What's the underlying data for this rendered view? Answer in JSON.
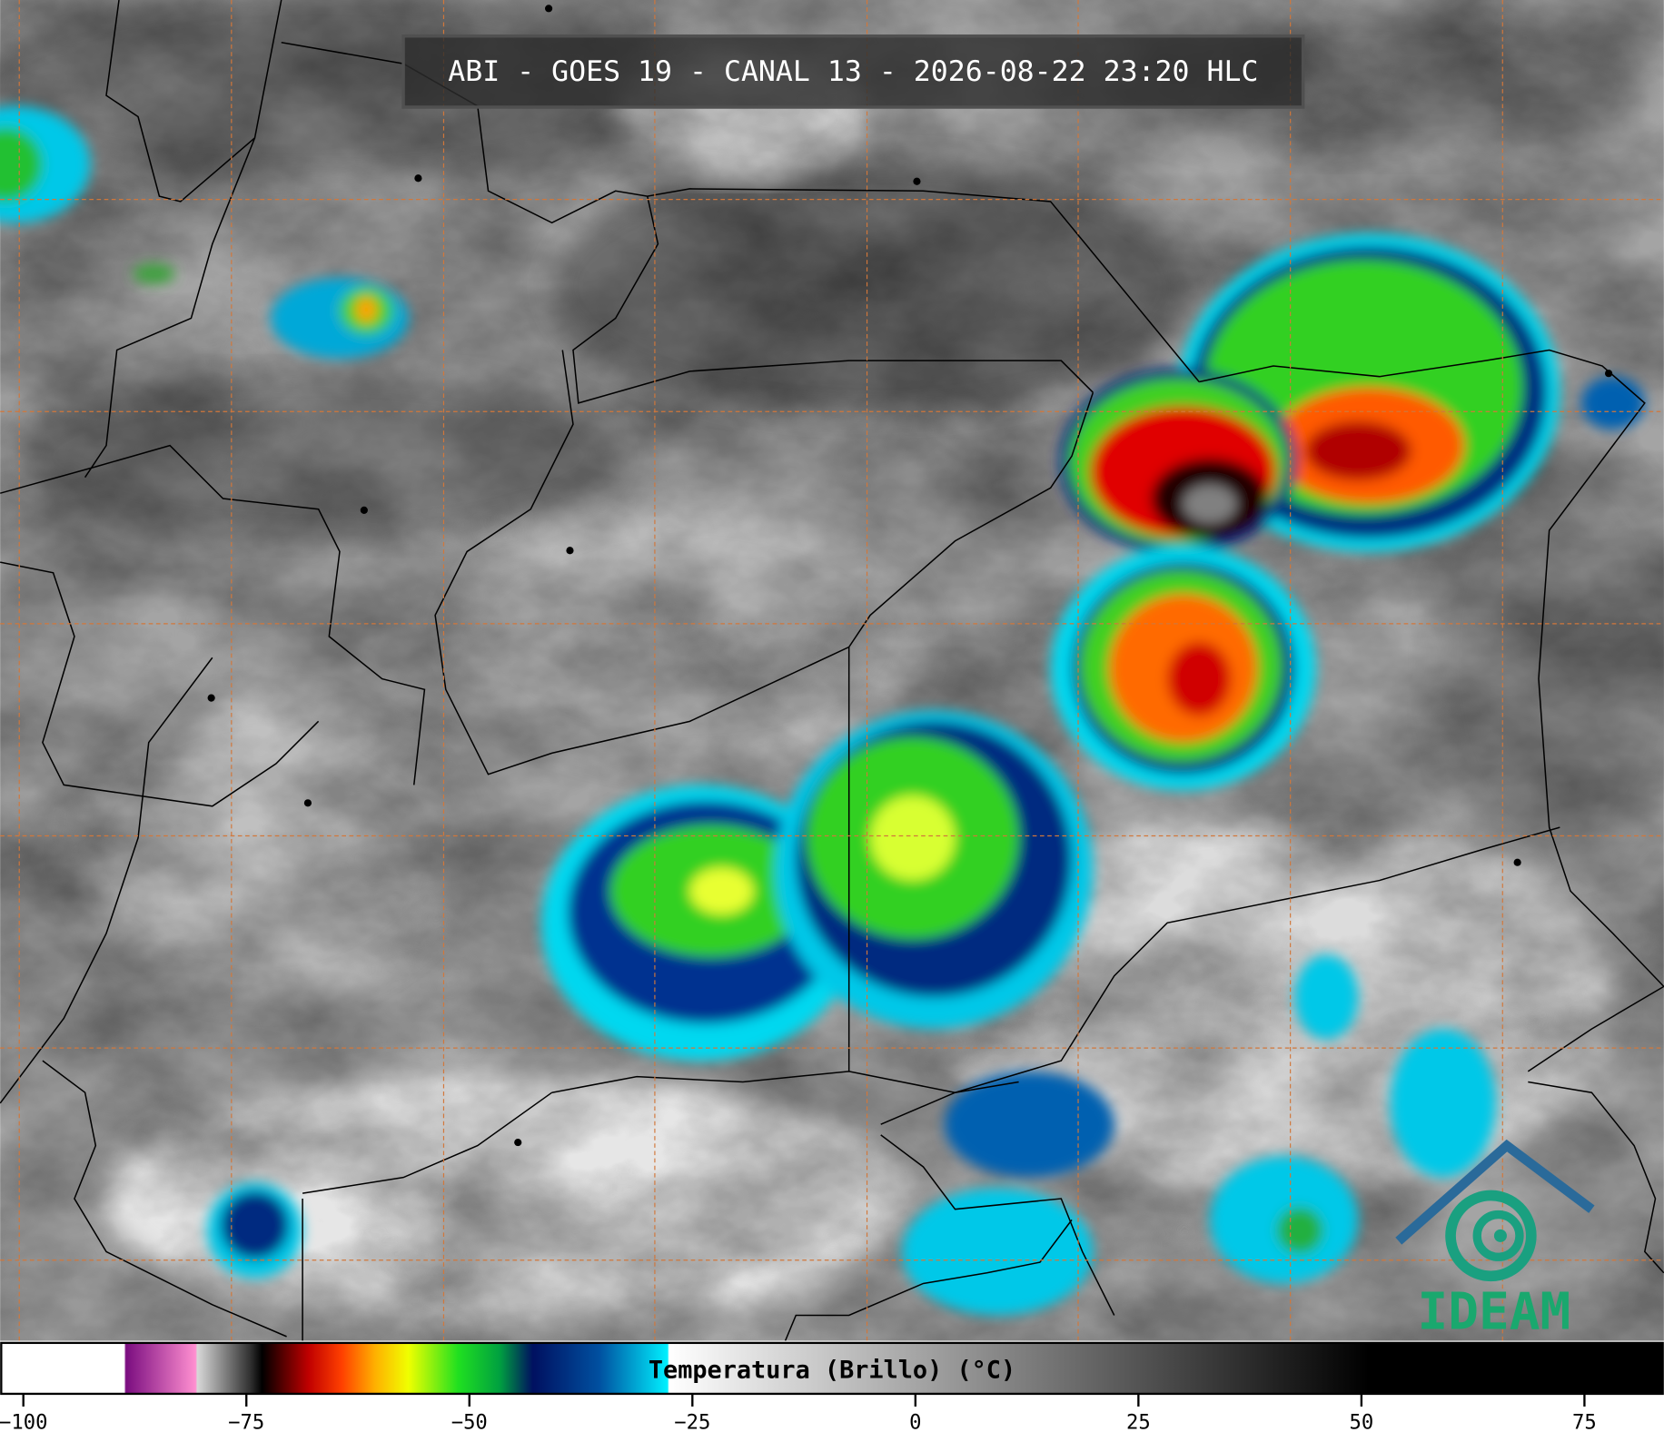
{
  "header": {
    "title": "ABI - GOES 19 - CANAL 13 - 2026-08-22 23:20 HLC"
  },
  "colorbar": {
    "label": "Temperatura (Brillo) (°C)",
    "range": [
      -102.6,
      83.9
    ],
    "ticks": [
      {
        "value": -100,
        "label": "−100"
      },
      {
        "value": -75,
        "label": "−75"
      },
      {
        "value": -50,
        "label": "−50"
      },
      {
        "value": -25,
        "label": "−25"
      },
      0,
      25,
      50,
      75
    ]
  },
  "logo": {
    "text": "IDEAM"
  }
}
